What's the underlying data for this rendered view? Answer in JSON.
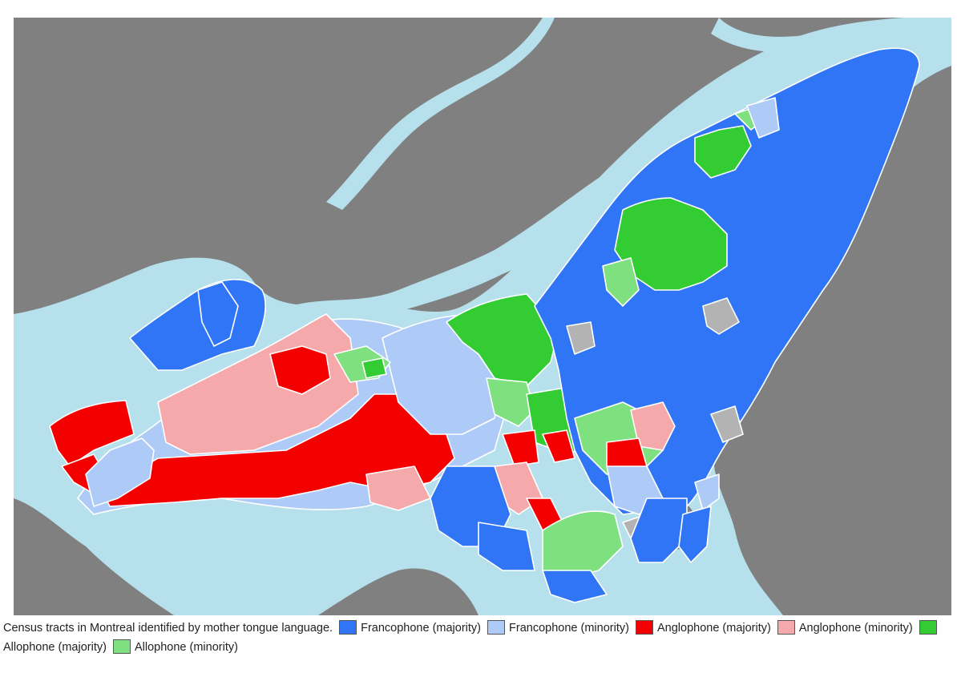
{
  "caption": {
    "text": "Census tracts in Montreal identified by mother tongue language."
  },
  "legend": [
    {
      "label": "Francophone (majority)",
      "color": "#2f75f6"
    },
    {
      "label": "Francophone (minority)",
      "color": "#aecbf8"
    },
    {
      "label": "Anglophone (majority)",
      "color": "#f40000"
    },
    {
      "label": "Anglophone (minority)",
      "color": "#f6a9ab"
    },
    {
      "label": "Allophone (majority)",
      "color": "#33cc33"
    },
    {
      "label": "Allophone (minority)",
      "color": "#7fe07f"
    }
  ],
  "colors": {
    "land": "#808080",
    "water": "#b6e0ec",
    "no_data": "#b3b3b3"
  }
}
